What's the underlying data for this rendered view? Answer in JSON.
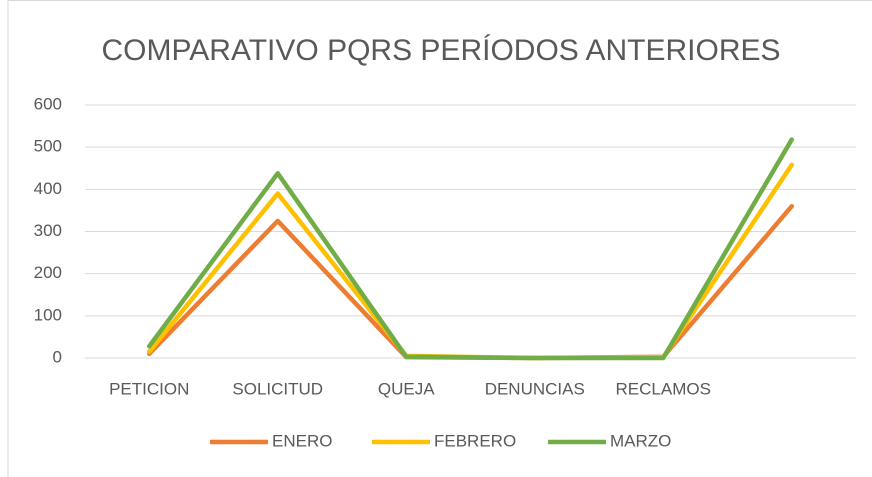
{
  "chart_data": {
    "type": "line",
    "title": "COMPARATIVO PQRS PERÍODOS ANTERIORES",
    "categories": [
      "PETICION",
      "SOLICITUD",
      "QUEJA",
      "DENUNCIAS",
      "RECLAMOS",
      null
    ],
    "series": [
      {
        "name": "ENERO",
        "color": "#ed7d31",
        "values": [
          10,
          325,
          2,
          0,
          3,
          360
        ]
      },
      {
        "name": "FEBRERO",
        "color": "#ffc000",
        "values": [
          15,
          390,
          5,
          0,
          2,
          458
        ]
      },
      {
        "name": "MARZO",
        "color": "#70ad47",
        "values": [
          28,
          438,
          3,
          0,
          0,
          518
        ]
      }
    ],
    "ylim": [
      0,
      600
    ],
    "yticks": [
      0,
      100,
      200,
      300,
      400,
      500,
      600
    ],
    "grid": true,
    "legend": "bottom"
  }
}
